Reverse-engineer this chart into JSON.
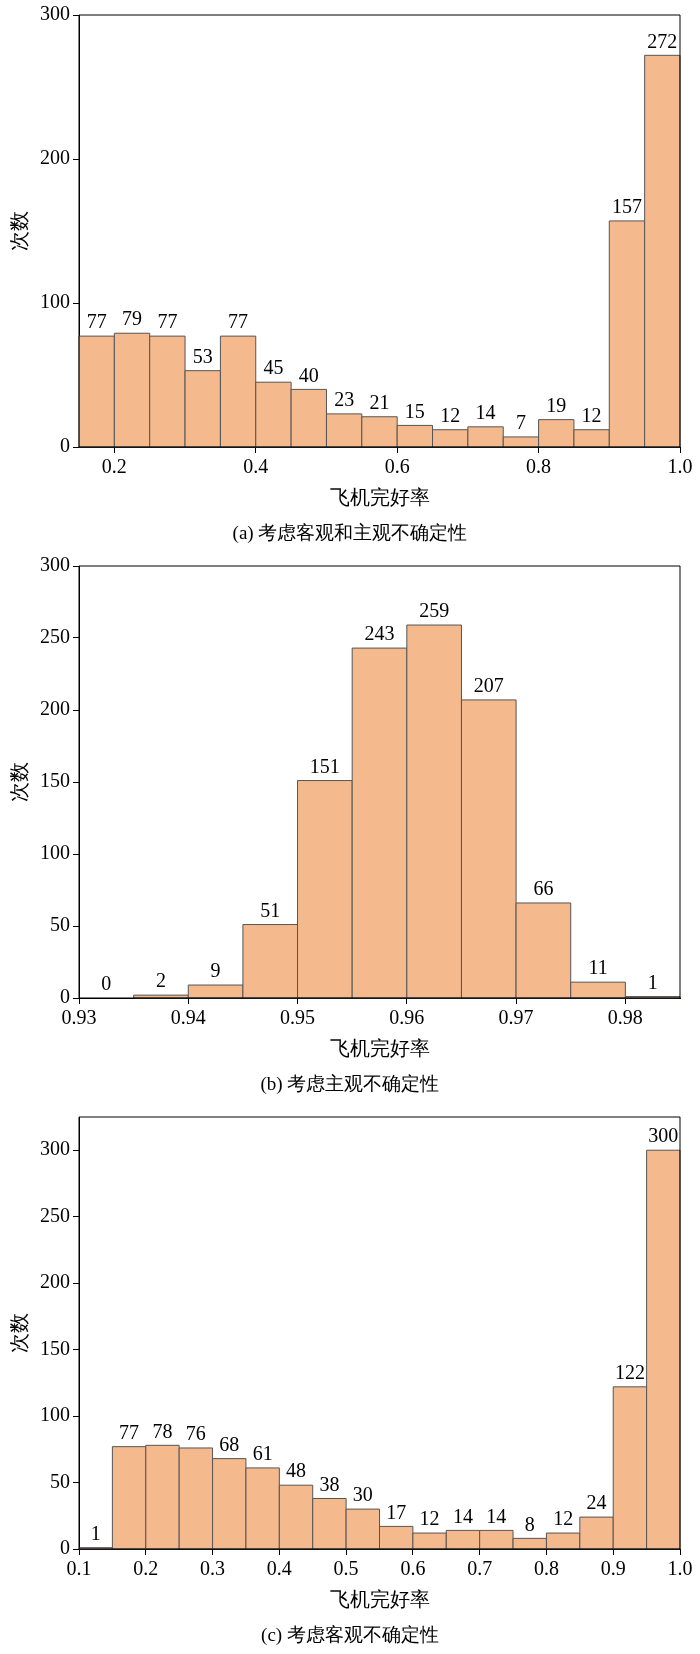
{
  "chart_data": [
    {
      "type": "histogram",
      "xlabel": "飞机完好率",
      "ylabel": "次数",
      "annotations": [
        "(a) 考虑客观和主观不确定性"
      ],
      "bins": [
        0.15,
        0.2,
        0.25,
        0.3,
        0.35,
        0.4,
        0.45,
        0.5,
        0.55,
        0.6,
        0.65,
        0.7,
        0.75,
        0.8,
        0.85,
        0.9,
        0.95,
        1.0
      ],
      "values": [
        77,
        79,
        77,
        53,
        77,
        45,
        40,
        23,
        21,
        15,
        12,
        14,
        7,
        19,
        12,
        157,
        272
      ],
      "color": "#f5b98e",
      "xlim": [
        0.15,
        1.0
      ],
      "xticks": [
        0.2,
        0.4,
        0.6,
        0.8,
        {
          "value": 1,
          "label": "1.0"
        }
      ],
      "ylim": [
        0,
        300
      ],
      "yticks": [
        0,
        100,
        200,
        300
      ],
      "data_labels": true,
      "grid": false,
      "legend": false
    },
    {
      "type": "histogram",
      "xlabel": "飞机完好率",
      "ylabel": "次数",
      "annotations": [
        "(b) 考虑主观不确定性"
      ],
      "bins": [
        0.93,
        0.935,
        0.94,
        0.945,
        0.95,
        0.955,
        0.96,
        0.965,
        0.97,
        0.975,
        0.98,
        0.985
      ],
      "values": [
        0,
        2,
        9,
        51,
        151,
        243,
        259,
        207,
        66,
        11,
        1
      ],
      "color": "#f5b98e",
      "xlim": [
        0.93,
        0.985
      ],
      "xticks": [
        0.93,
        0.94,
        0.95,
        0.96,
        0.97,
        0.98
      ],
      "ylim": [
        0,
        300
      ],
      "yticks": [
        0,
        50,
        100,
        150,
        200,
        250,
        300
      ],
      "data_labels": true,
      "grid": false,
      "legend": false
    },
    {
      "type": "histogram",
      "xlabel": "飞机完好率",
      "ylabel": "次数",
      "annotations": [
        "(c) 考虑客观不确定性"
      ],
      "bins": [
        0.1,
        0.15,
        0.2,
        0.25,
        0.3,
        0.35,
        0.4,
        0.45,
        0.5,
        0.55,
        0.6,
        0.65,
        0.7,
        0.75,
        0.8,
        0.85,
        0.9,
        0.95,
        1.0
      ],
      "values": [
        1,
        77,
        78,
        76,
        68,
        61,
        48,
        38,
        30,
        17,
        12,
        14,
        14,
        8,
        12,
        24,
        122,
        300
      ],
      "color": "#f5b98e",
      "xlim": [
        0.1,
        1.0
      ],
      "xticks": [
        0.1,
        0.2,
        0.3,
        0.4,
        0.5,
        0.6,
        0.7,
        0.8,
        0.9,
        {
          "value": 1,
          "label": "1.0"
        }
      ],
      "ylim": [
        0,
        325
      ],
      "yticks": [
        0,
        50,
        100,
        150,
        200,
        250,
        300
      ],
      "data_labels": true,
      "grid": false,
      "legend": false
    }
  ]
}
